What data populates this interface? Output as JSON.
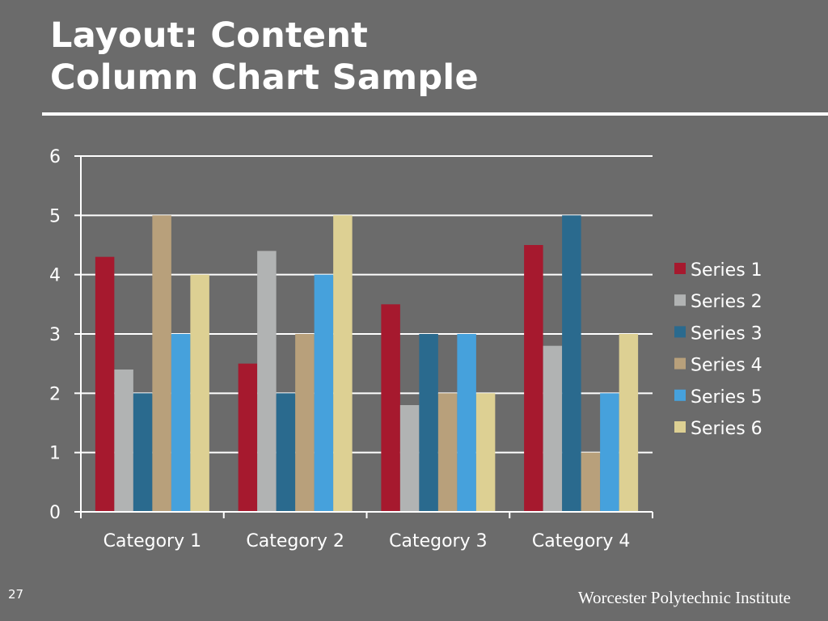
{
  "slide": {
    "title_line1": "Layout: Content",
    "title_line2": "Column Chart Sample",
    "number": "27",
    "footer": "Worcester Polytechnic Institute"
  },
  "colors": {
    "background": "#6b6b6b",
    "text": "#ffffff",
    "gridline": "#ffffff"
  },
  "chart_data": {
    "type": "bar",
    "title": "",
    "xlabel": "",
    "ylabel": "",
    "ylim": [
      0,
      6
    ],
    "yticks": [
      0,
      1,
      2,
      3,
      4,
      5,
      6
    ],
    "grid": true,
    "legend_position": "right",
    "categories": [
      "Category 1",
      "Category 2",
      "Category 3",
      "Category 4"
    ],
    "series": [
      {
        "name": "Series 1",
        "color": "#a6192e",
        "values": [
          4.3,
          2.5,
          3.5,
          4.5
        ]
      },
      {
        "name": "Series 2",
        "color": "#b1b3b3",
        "values": [
          2.4,
          4.4,
          1.8,
          2.8
        ]
      },
      {
        "name": "Series 3",
        "color": "#2a6a8e",
        "values": [
          2,
          2,
          3,
          5
        ]
      },
      {
        "name": "Series 4",
        "color": "#b8a07b",
        "values": [
          5,
          3,
          2,
          1
        ]
      },
      {
        "name": "Series 5",
        "color": "#46a1dc",
        "values": [
          3,
          4,
          3,
          2
        ]
      },
      {
        "name": "Series 6",
        "color": "#ddd093",
        "values": [
          4,
          5,
          2,
          3
        ]
      }
    ]
  }
}
